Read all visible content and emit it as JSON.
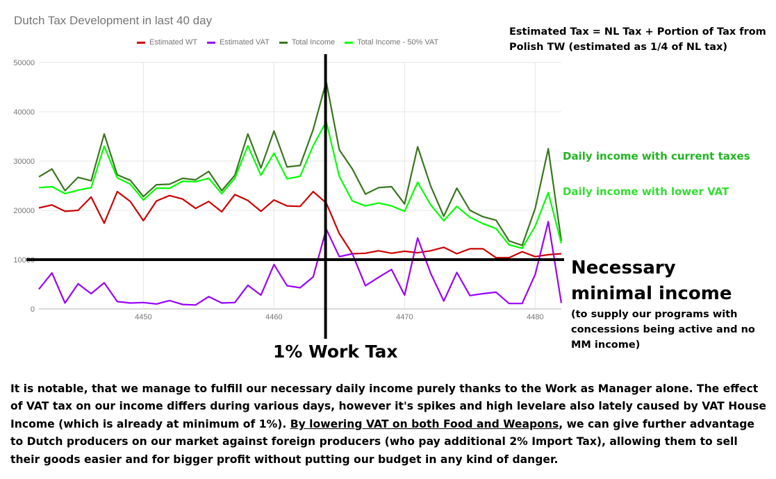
{
  "chart_data": {
    "type": "line",
    "title": "Dutch Tax Development in last 40 day",
    "x": [
      4442,
      4443,
      4444,
      4445,
      4446,
      4447,
      4448,
      4449,
      4450,
      4451,
      4452,
      4453,
      4454,
      4455,
      4456,
      4457,
      4458,
      4459,
      4460,
      4461,
      4462,
      4463,
      4464,
      4465,
      4466,
      4467,
      4468,
      4469,
      4470,
      4471,
      4472,
      4473,
      4474,
      4475,
      4476,
      4477,
      4478,
      4479,
      4480,
      4481,
      4482
    ],
    "x_ticks": [
      4450,
      4460,
      4470,
      4480
    ],
    "y_ticks": [
      0,
      10000,
      20000,
      30000,
      40000,
      50000
    ],
    "ylim": [
      0,
      50000
    ],
    "xlim": [
      4442,
      4482
    ],
    "grid": true,
    "legend_position": "top",
    "series": [
      {
        "name": "Estimated WT",
        "color": "#cc0000",
        "values": [
          20500,
          21100,
          19800,
          20000,
          22700,
          17400,
          23800,
          21800,
          17900,
          21900,
          23000,
          22300,
          20400,
          21800,
          19700,
          23200,
          22000,
          19800,
          22100,
          20900,
          20800,
          23800,
          21500,
          15300,
          11200,
          11300,
          11800,
          11300,
          11700,
          11400,
          11800,
          12500,
          11200,
          12200,
          12200,
          10400,
          10400,
          11600,
          10600,
          11000,
          11200
        ]
      },
      {
        "name": "Estimated VAT",
        "color": "#9900ff",
        "values": [
          4000,
          7300,
          1200,
          5100,
          3100,
          5300,
          1500,
          1200,
          1300,
          1000,
          1700,
          900,
          800,
          2500,
          1200,
          1300,
          4800,
          2800,
          9000,
          4700,
          4300,
          6500,
          16200,
          10600,
          11200,
          4700,
          6400,
          8000,
          2800,
          14400,
          7200,
          1600,
          7400,
          2700,
          3100,
          3400,
          1100,
          1100,
          7000,
          17700,
          1200
        ]
      },
      {
        "name": "Total Income",
        "color": "#38761d",
        "values": [
          26800,
          28400,
          24000,
          26700,
          26000,
          35500,
          27200,
          26100,
          22800,
          25200,
          25300,
          26500,
          26200,
          27900,
          24000,
          27100,
          35500,
          28600,
          36100,
          28800,
          29100,
          36400,
          46100,
          32300,
          28400,
          23300,
          24600,
          24800,
          21300,
          32900,
          24900,
          18800,
          24500,
          20000,
          18700,
          18000,
          13800,
          12900,
          20400,
          32500,
          13800
        ]
      },
      {
        "name": "Total Income - 50% VAT",
        "color": "#00ff00",
        "values": [
          24600,
          24800,
          23400,
          24100,
          24600,
          33000,
          26600,
          25300,
          22100,
          24500,
          24500,
          25900,
          25800,
          26500,
          23400,
          26500,
          33100,
          27100,
          31600,
          26400,
          26900,
          33100,
          38000,
          26900,
          21900,
          20900,
          21500,
          20900,
          19800,
          25700,
          21100,
          17900,
          20800,
          18600,
          17300,
          16300,
          13000,
          12300,
          16800,
          23600,
          13300
        ]
      }
    ],
    "reference_line": {
      "value": 10000,
      "color": "#000000"
    },
    "vertical_marker": {
      "x": 4464,
      "label": "1% Work Tax"
    }
  },
  "annotations": {
    "formula_line1": "Estimated Tax = NL Tax + Portion of Tax from",
    "formula_line2": "Polish TW (estimated as 1/4 of NL tax)",
    "current_taxes": "Daily income with current taxes",
    "current_taxes_color": "#22b522",
    "lower_vat": "Daily income with lower VAT",
    "lower_vat_color": "#33dd33",
    "necessary_line1": "Necessary",
    "necessary_line2": "minimal income",
    "necessary_sub1": "(to supply our programs with",
    "necessary_sub2": "concessions being active and no",
    "necessary_sub3": "MM income)",
    "work_tax": "1% Work Tax"
  },
  "paragraph": {
    "part1": "It is notable, that we manage to fulfill our necessary daily income purely thanks to the Work as Manager alone. The effect of VAT tax on our income differs during various days, however it's spikes and high levelare also lately caused by VAT House Income (which is already at minimum of 1%). ",
    "underlined": "By lowering VAT on both Food and Weapons",
    "part2": ", we can give further advantage to Dutch producers on our market against foreign producers (who pay additional 2% Import Tax), allowing them to sell their goods easier and for bigger profit without putting our budget in any kind of danger."
  }
}
